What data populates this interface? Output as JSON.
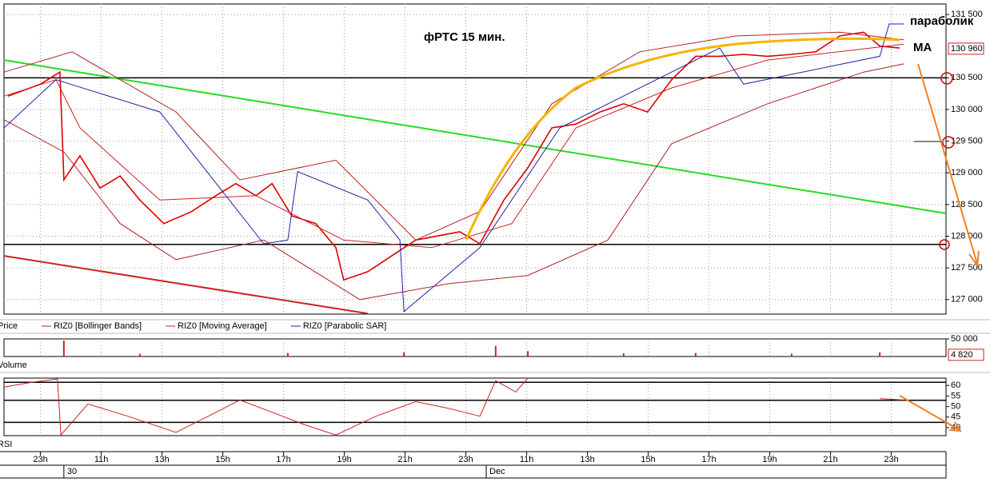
{
  "chart_data": [
    {
      "type": "line",
      "title": "фРТС   15 мин.",
      "annotations": [
        "параболик",
        "MA"
      ],
      "xlim": [
        -1.2,
        29.8
      ],
      "ylim": [
        126770,
        131665
      ],
      "yticks": [
        {
          "value": 127000,
          "label": "127 000"
        },
        {
          "value": 127500,
          "label": "127 500"
        },
        {
          "value": 128000,
          "label": "128 000"
        },
        {
          "value": 128500,
          "label": "128 500"
        },
        {
          "value": 129000,
          "label": "129 000"
        },
        {
          "value": 129500,
          "label": "129 500"
        },
        {
          "value": 130000,
          "label": "130 000"
        },
        {
          "value": 130500,
          "label": "130 500"
        },
        {
          "value": 131500,
          "label": "131 500"
        }
      ],
      "xticks": [
        {
          "value": 0,
          "label": "23h"
        },
        {
          "value": 2,
          "label": "11h"
        },
        {
          "value": 4,
          "label": "13h"
        },
        {
          "value": 6,
          "label": "15h"
        },
        {
          "value": 8,
          "label": "17h"
        },
        {
          "value": 10,
          "label": "19h"
        },
        {
          "value": 12,
          "label": "21h"
        },
        {
          "value": 14,
          "label": "23h"
        },
        {
          "value": 16,
          "label": "11h"
        },
        {
          "value": 18,
          "label": "13h"
        },
        {
          "value": 20,
          "label": "15h"
        },
        {
          "value": 22,
          "label": "17h"
        },
        {
          "value": 24,
          "label": "19h"
        },
        {
          "value": 26,
          "label": "21h"
        },
        {
          "value": 28,
          "label": "23h"
        }
      ],
      "date_labels": [
        {
          "value": 0.77,
          "label": "30"
        },
        {
          "value": 14.67,
          "label": "Dec"
        }
      ],
      "grid": true,
      "last_value": {
        "value": 130960,
        "label": "130 960"
      },
      "levels": [
        130500,
        127870
      ],
      "trend_lines": [
        {
          "color": "#22dd22",
          "x": [
            -1.2,
            29.8
          ],
          "values": [
            130780,
            128360
          ]
        },
        {
          "color": "#cc2222",
          "x": [
            -1.2,
            10.77
          ],
          "values": [
            127690,
            126780
          ]
        }
      ],
      "series": [
        {
          "name": "Price",
          "color": "#dd0000",
          "x": [
            -1.07,
            0,
            0.64,
            0.77,
            1.3,
            1.96,
            2.62,
            3.27,
            4.06,
            4.98,
            5.77,
            6.43,
            7.09,
            7.62,
            8.27,
            9.06,
            9.72,
            9.98,
            10.77,
            11.56,
            12.35,
            13.14,
            13.8,
            14.46,
            15.25,
            16.04,
            16.83,
            17.62,
            18.41,
            19.19,
            19.98,
            20.77,
            21.56,
            22.35,
            23.14,
            23.93,
            24.72,
            25.51,
            26.3,
            27.09,
            27.62,
            28.27
          ],
          "values": [
            130210,
            130400,
            130590,
            128890,
            129270,
            128760,
            128950,
            128570,
            128200,
            128390,
            128640,
            128830,
            128640,
            128830,
            128320,
            128200,
            127820,
            127310,
            127440,
            127690,
            127940,
            128010,
            128070,
            127880,
            128570,
            129080,
            129710,
            129770,
            129960,
            130090,
            129960,
            130470,
            130840,
            130840,
            130870,
            130840,
            130870,
            130910,
            131160,
            131220,
            131000,
            130970
          ]
        },
        {
          "name": "RIZ0 [Bollinger Bands]",
          "color": "#b22222",
          "x": [
            -1.2,
            1.04,
            4.46,
            6.56,
            9.72,
            12.35,
            14.46,
            16.83,
            19.72,
            22.88,
            26.3,
            28.41
          ],
          "values": [
            130590,
            130910,
            129960,
            128890,
            129200,
            127940,
            128390,
            130090,
            130910,
            131160,
            131220,
            131100
          ]
        },
        {
          "color": "#b22222",
          "x": [
            -1.2,
            0.77,
            2.62,
            4.46,
            7.35,
            10.51,
            13.41,
            16.04,
            18.67,
            20.77,
            23.93,
            27.09,
            28.41
          ],
          "values": [
            129840,
            129330,
            128200,
            127630,
            127940,
            127000,
            127250,
            127380,
            127940,
            129460,
            130090,
            130590,
            130720
          ]
        },
        {
          "name": "RIZ0 [Moving Average]",
          "color": "#cc2222",
          "x": [
            -1.2,
            0.51,
            1.3,
            3.93,
            7.09,
            9.98,
            12.88,
            15.51,
            17.62,
            20.77,
            23.93,
            28.41
          ],
          "values": [
            130210,
            130470,
            129710,
            128570,
            128640,
            127940,
            127820,
            128200,
            129710,
            130340,
            130780,
            131030
          ]
        },
        {
          "name": "RIZ0 [Parabolic SAR]",
          "color": "#2222aa",
          "x": [
            -1.2,
            0.51,
            3.93,
            7.35,
            8.14,
            8.46,
            10.77,
            11.83,
            11.96,
            14.46,
            17.09,
            22.35,
            23.14,
            27.62,
            27.93,
            28.41
          ],
          "values": [
            129710,
            130470,
            129960,
            127880,
            127940,
            129020,
            128570,
            127940,
            126810,
            127820,
            129710,
            130970,
            130400,
            130840,
            131350,
            131350
          ]
        }
      ]
    },
    {
      "type": "bar",
      "title": "Volume",
      "xlim": [
        -1.2,
        29.8
      ],
      "ylim": [
        0,
        50000
      ],
      "yticks": [
        {
          "value": 50000,
          "label": "50 000"
        }
      ],
      "last_value": {
        "value": 4820,
        "label": "4 820"
      },
      "color": "#cc2222",
      "x": [
        0.77,
        3.27,
        8.14,
        11.96,
        14.98,
        16.04,
        19.19,
        21.56,
        24.72,
        27.62
      ],
      "values": [
        45000,
        8000,
        10000,
        12000,
        30000,
        15000,
        9000,
        10000,
        8000,
        12000
      ]
    },
    {
      "type": "line",
      "title": "RSI",
      "xlim": [
        -1.2,
        29.8
      ],
      "ylim": [
        36.2,
        63.5
      ],
      "yticks": [
        40,
        45,
        50,
        55,
        60
      ],
      "levels": [
        61.5,
        53,
        42.5
      ],
      "series": [
        {
          "color": "#cc2222",
          "x": [
            -1.2,
            -0.28,
            0.56,
            0.67,
            1.56,
            2.88,
            4.46,
            6.04,
            6.56,
            7.62,
            8.67,
            9.72,
            11.04,
            12.35,
            13.41,
            14.46,
            14.98,
            15.64,
            16.04,
            27.35,
            27.62,
            28.41
          ],
          "values": [
            59.2,
            61.5,
            63.1,
            36.5,
            51.2,
            45.4,
            37.7,
            49.2,
            53.1,
            47.3,
            41.5,
            36.5,
            45.4,
            52.3,
            49.2,
            45.4,
            62.3,
            56.9,
            63.5,
            null,
            53.8,
            53.1
          ]
        }
      ]
    }
  ]
}
